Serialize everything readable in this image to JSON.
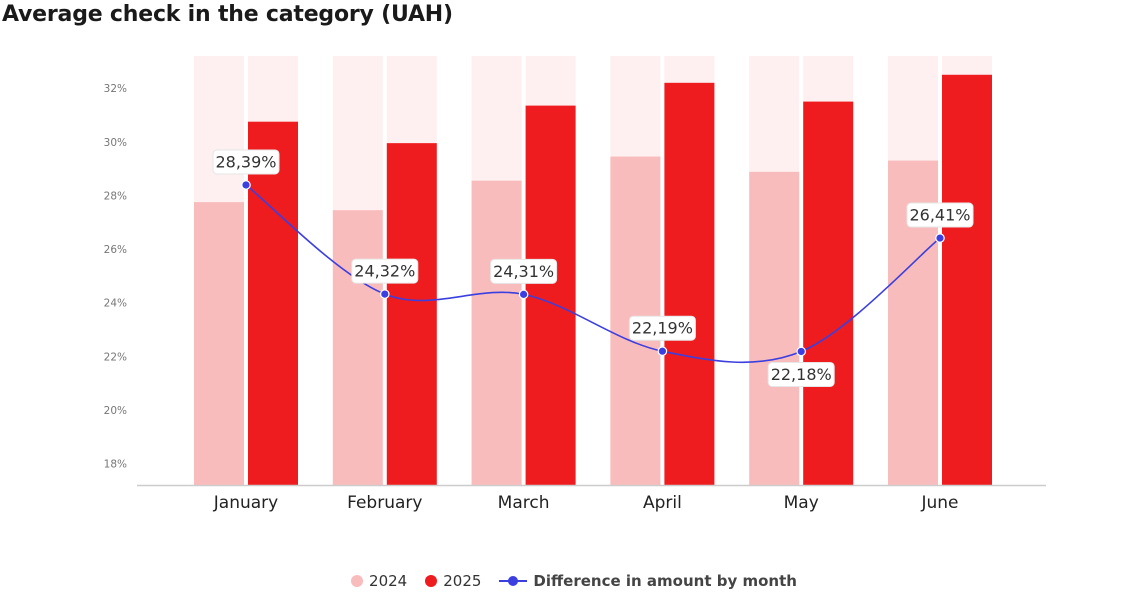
{
  "title": "Average check in the category (UAH)",
  "legend": {
    "items": [
      {
        "label": "2024",
        "color": "#f9bcbc",
        "shape": "dot"
      },
      {
        "label": "2025",
        "color": "#ee1c1f",
        "shape": "dot"
      },
      {
        "label": "Difference in amount by month",
        "color": "#3b3fe0",
        "shape": "line"
      }
    ]
  },
  "chart_data": {
    "type": "bar",
    "title": "Average check in the category (UAH)",
    "categories": [
      "January",
      "February",
      "March",
      "April",
      "May",
      "June"
    ],
    "series": [
      {
        "name": "2024",
        "type": "bar",
        "color": "#f9bcbc",
        "values": [
          27.75,
          27.45,
          28.55,
          29.45,
          28.88,
          29.3
        ]
      },
      {
        "name": "2025",
        "type": "bar",
        "color": "#ee1c1f",
        "values": [
          30.75,
          29.95,
          31.35,
          32.2,
          31.5,
          32.5
        ]
      },
      {
        "name": "Difference in amount by month",
        "type": "line",
        "color": "#3b3fe0",
        "values": [
          28.39,
          24.32,
          24.31,
          22.19,
          22.18,
          26.41
        ],
        "labels": [
          "28,39%",
          "24,32%",
          "24,31%",
          "22,19%",
          "22,18%",
          "26,41%"
        ]
      }
    ],
    "y_ticks": [
      "18%",
      "20%",
      "22%",
      "24%",
      "26%",
      "28%",
      "30%",
      "32%"
    ],
    "ylim": [
      17.2,
      33.2
    ],
    "grid": false,
    "legend_position": "bottom-center"
  }
}
